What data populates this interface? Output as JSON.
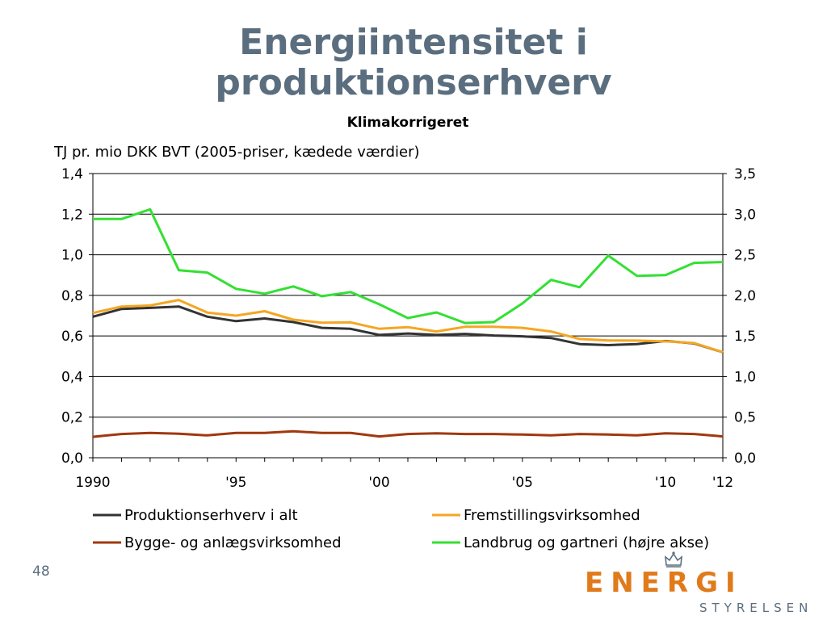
{
  "slide": {
    "title_line1": "Energiintensitet i",
    "title_line2": "produktionserhverv",
    "subtitle": "Klimakorrigeret",
    "unit_label": "TJ pr. mio DKK BVT (2005-priser, kædede værdier)",
    "page_number": "48"
  },
  "logo": {
    "word": "ENERGI",
    "sub": "STYRELSEN",
    "color": "#e07a1a"
  },
  "chart_data": {
    "type": "line",
    "x": [
      1990,
      1991,
      1992,
      1993,
      1994,
      1995,
      1996,
      1997,
      1998,
      1999,
      2000,
      2001,
      2002,
      2003,
      2004,
      2005,
      2006,
      2007,
      2008,
      2009,
      2010,
      2011,
      2012
    ],
    "x_tick_labels": [
      {
        "x": 1990,
        "label": "1990"
      },
      {
        "x": 1995,
        "label": "'95"
      },
      {
        "x": 2000,
        "label": "'00"
      },
      {
        "x": 2005,
        "label": "'05"
      },
      {
        "x": 2010,
        "label": "'10"
      },
      {
        "x": 2012,
        "label": "'12"
      }
    ],
    "y_left": {
      "lim": [
        0,
        1.4
      ],
      "ticks": [
        "0,0",
        "0,2",
        "0,4",
        "0,6",
        "0,8",
        "1,0",
        "1,2",
        "1,4"
      ],
      "values": [
        0,
        0.2,
        0.4,
        0.6,
        0.8,
        1.0,
        1.2,
        1.4
      ]
    },
    "y_right": {
      "lim": [
        0,
        3.5
      ],
      "ticks": [
        "0,0",
        "0,5",
        "1,0",
        "1,5",
        "2,0",
        "2,5",
        "3,0",
        "3,5"
      ],
      "values": [
        0,
        0.5,
        1.0,
        1.5,
        2.0,
        2.5,
        3.0,
        3.5
      ]
    },
    "grid": "horizontal",
    "legend_position": "bottom",
    "series": [
      {
        "name": "Produktionserhverv i alt",
        "color": "#333333",
        "axis": "left",
        "values": [
          0.695,
          0.733,
          0.738,
          0.745,
          0.695,
          0.673,
          0.686,
          0.668,
          0.64,
          0.635,
          0.605,
          0.612,
          0.605,
          0.61,
          0.602,
          0.598,
          0.59,
          0.56,
          0.555,
          0.56,
          0.575,
          0.563,
          0.52
        ]
      },
      {
        "name": "Fremstillingsvirksomhed",
        "color": "#f5a623",
        "axis": "left",
        "values": [
          0.713,
          0.745,
          0.75,
          0.777,
          0.715,
          0.7,
          0.722,
          0.68,
          0.665,
          0.667,
          0.635,
          0.643,
          0.622,
          0.645,
          0.645,
          0.64,
          0.622,
          0.585,
          0.578,
          0.577,
          0.573,
          0.565,
          0.52
        ]
      },
      {
        "name": "Bygge- og anlægsvirksomhed",
        "color": "#a0380e",
        "axis": "left",
        "values": [
          0.103,
          0.117,
          0.122,
          0.118,
          0.11,
          0.122,
          0.122,
          0.13,
          0.122,
          0.122,
          0.105,
          0.117,
          0.12,
          0.117,
          0.117,
          0.114,
          0.11,
          0.117,
          0.114,
          0.11,
          0.12,
          0.117,
          0.105
        ]
      },
      {
        "name": "Landbrug og gartneri (højre akse)",
        "color": "#33e033",
        "axis": "right",
        "values": [
          2.94,
          2.94,
          3.06,
          2.31,
          2.28,
          2.08,
          2.02,
          2.11,
          1.99,
          2.04,
          1.89,
          1.72,
          1.79,
          1.66,
          1.67,
          1.9,
          2.19,
          2.1,
          2.49,
          2.24,
          2.25,
          2.4,
          2.41
        ]
      }
    ]
  }
}
